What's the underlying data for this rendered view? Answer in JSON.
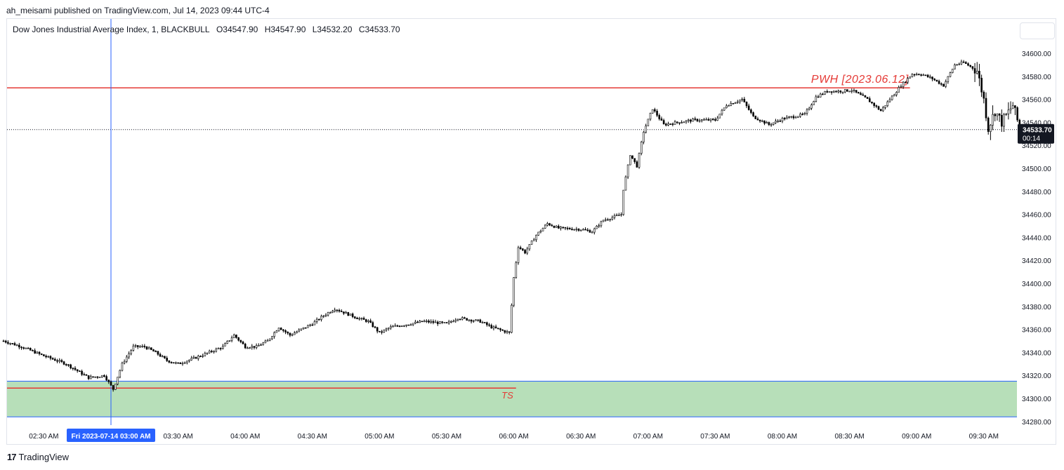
{
  "header": {
    "published_line": "ah_meisami published on TradingView.com, Jul 14, 2023 09:44 UTC-4"
  },
  "legend": {
    "title": "Dow Jones Industrial Average Index, 1, BLACKBULL",
    "open": "O34547.90",
    "high": "H34547.90",
    "low": "L34532.20",
    "close": "C34533.70"
  },
  "footer": {
    "logo": "17",
    "brand": "TradingView"
  },
  "colors": {
    "candle": "#000000",
    "level": "#e53935",
    "zone": "#b7dfb9",
    "zone_border": "#2962ff",
    "crosshair": "#2962ff",
    "badge": "#131722"
  },
  "chart_data": {
    "type": "candlestick",
    "ylim": [
      34275,
      34620
    ],
    "y_ticks": [
      "34600.00",
      "34580.00",
      "34560.00",
      "34540.00",
      "34520.00",
      "34500.00",
      "34480.00",
      "34460.00",
      "34440.00",
      "34420.00",
      "34400.00",
      "34380.00",
      "34360.00",
      "34340.00",
      "34320.00",
      "34300.00",
      "34280.00"
    ],
    "x_ticks": [
      {
        "label": "02:30 AM",
        "t": -30
      },
      {
        "label": "03:30 AM",
        "t": 30
      },
      {
        "label": "04:00 AM",
        "t": 60
      },
      {
        "label": "04:30 AM",
        "t": 90
      },
      {
        "label": "05:00 AM",
        "t": 120
      },
      {
        "label": "05:30 AM",
        "t": 150
      },
      {
        "label": "06:00 AM",
        "t": 180
      },
      {
        "label": "06:30 AM",
        "t": 210
      },
      {
        "label": "07:00 AM",
        "t": 240
      },
      {
        "label": "07:30 AM",
        "t": 270
      },
      {
        "label": "08:00 AM",
        "t": 300
      },
      {
        "label": "08:30 AM",
        "t": 330
      },
      {
        "label": "09:00 AM",
        "t": 360
      },
      {
        "label": "09:30 AM",
        "t": 390
      }
    ],
    "crosshair": {
      "label": "Fri 2023-07-14   03:00 AM",
      "t": 0
    },
    "last_price": {
      "value": 34533.7,
      "label": "34533.70",
      "countdown": "00:14"
    },
    "levels": [
      {
        "label": "PWH [2023.06.12]",
        "value": 34570,
        "t_start": -47,
        "t_end": 357
      },
      {
        "label": "TS",
        "value": 34309,
        "t_start": -47,
        "t_end": 181
      }
    ],
    "zone": {
      "from": 34284,
      "to": 34315
    },
    "keypoints": [
      [
        -48,
        34350
      ],
      [
        -40,
        34345
      ],
      [
        -30,
        34337
      ],
      [
        -20,
        34330
      ],
      [
        -10,
        34318
      ],
      [
        -3,
        34320
      ],
      [
        1,
        34308
      ],
      [
        5,
        34330
      ],
      [
        10,
        34345
      ],
      [
        15,
        34345
      ],
      [
        20,
        34340
      ],
      [
        25,
        34333
      ],
      [
        30,
        34330
      ],
      [
        40,
        34337
      ],
      [
        50,
        34345
      ],
      [
        55,
        34355
      ],
      [
        60,
        34345
      ],
      [
        65,
        34345
      ],
      [
        70,
        34350
      ],
      [
        75,
        34362
      ],
      [
        80,
        34355
      ],
      [
        90,
        34365
      ],
      [
        95,
        34372
      ],
      [
        100,
        34378
      ],
      [
        110,
        34370
      ],
      [
        115,
        34367
      ],
      [
        120,
        34357
      ],
      [
        125,
        34362
      ],
      [
        140,
        34367
      ],
      [
        150,
        34365
      ],
      [
        155,
        34370
      ],
      [
        165,
        34367
      ],
      [
        170,
        34362
      ],
      [
        178,
        34357
      ],
      [
        180,
        34405
      ],
      [
        182,
        34432
      ],
      [
        185,
        34427
      ],
      [
        190,
        34442
      ],
      [
        195,
        34452
      ],
      [
        200,
        34448
      ],
      [
        210,
        34447
      ],
      [
        215,
        34445
      ],
      [
        220,
        34455
      ],
      [
        225,
        34458
      ],
      [
        228,
        34460
      ],
      [
        229,
        34482
      ],
      [
        232,
        34512
      ],
      [
        235,
        34502
      ],
      [
        238,
        34532
      ],
      [
        242,
        34552
      ],
      [
        247,
        34538
      ],
      [
        260,
        34542
      ],
      [
        270,
        34542
      ],
      [
        275,
        34555
      ],
      [
        282,
        34560
      ],
      [
        287,
        34545
      ],
      [
        294,
        34538
      ],
      [
        300,
        34543
      ],
      [
        310,
        34547
      ],
      [
        315,
        34562
      ],
      [
        320,
        34567
      ],
      [
        325,
        34567
      ],
      [
        331,
        34568
      ],
      [
        338,
        34560
      ],
      [
        344,
        34550
      ],
      [
        348,
        34560
      ],
      [
        353,
        34572
      ],
      [
        358,
        34582
      ],
      [
        362,
        34582
      ],
      [
        367,
        34578
      ],
      [
        372,
        34572
      ],
      [
        377,
        34590
      ],
      [
        381,
        34592
      ],
      [
        387,
        34585
      ],
      [
        390,
        34560
      ],
      [
        392,
        34535
      ],
      [
        395,
        34550
      ],
      [
        398,
        34540
      ],
      [
        403,
        34555
      ],
      [
        406,
        34535
      ]
    ]
  }
}
